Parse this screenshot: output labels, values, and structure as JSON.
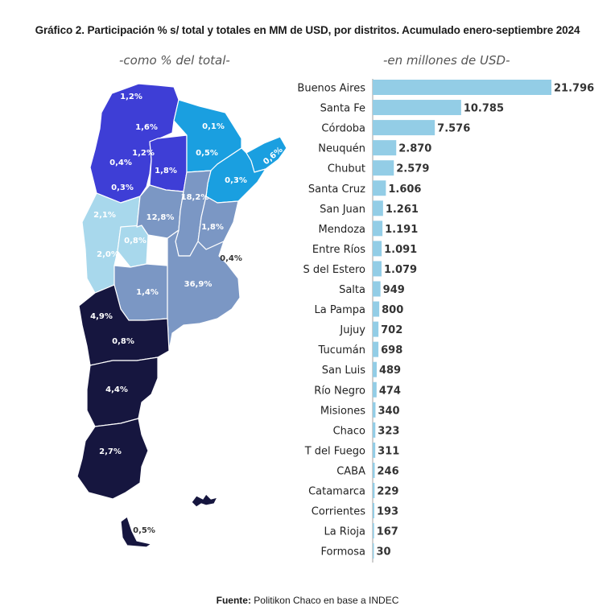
{
  "title": "Gráfico 2. Participación % s/ total y totales en MM de USD, por distritos. Acumulado enero-septiembre 2024",
  "map": {
    "subtitle": "-como % del total-",
    "colors": {
      "northwest": "#3e3ed6",
      "northeast": "#1a9fe0",
      "cuyo": "#a8d8ec",
      "center": "#7b97c4",
      "patagonia": "#16163f",
      "label_light": "#ffffff",
      "label_dark": "#333333"
    },
    "labels": [
      {
        "text": "1,2%",
        "region": "northwest"
      },
      {
        "text": "1,6%",
        "region": "northwest"
      },
      {
        "text": "1,2%",
        "region": "northwest"
      },
      {
        "text": "0,4%",
        "region": "northwest"
      },
      {
        "text": "1,8%",
        "region": "northwest"
      },
      {
        "text": "0,3%",
        "region": "northwest"
      },
      {
        "text": "0,1%",
        "region": "northeast"
      },
      {
        "text": "0,5%",
        "region": "northeast"
      },
      {
        "text": "0,6%",
        "region": "northeast"
      },
      {
        "text": "0,3%",
        "region": "northeast"
      },
      {
        "text": "2,1%",
        "region": "cuyo"
      },
      {
        "text": "0,8%",
        "region": "cuyo"
      },
      {
        "text": "2,0%",
        "region": "cuyo"
      },
      {
        "text": "12,8%",
        "region": "center"
      },
      {
        "text": "18,2%",
        "region": "center"
      },
      {
        "text": "1,8%",
        "region": "center"
      },
      {
        "text": "0,4%",
        "region": "outside"
      },
      {
        "text": "1,4%",
        "region": "center"
      },
      {
        "text": "36,9%",
        "region": "center"
      },
      {
        "text": "4,9%",
        "region": "patagonia"
      },
      {
        "text": "0,8%",
        "region": "patagonia"
      },
      {
        "text": "4,4%",
        "region": "patagonia"
      },
      {
        "text": "2,7%",
        "region": "patagonia"
      },
      {
        "text": "0,5%",
        "region": "outside"
      }
    ]
  },
  "chart_data": {
    "type": "bar",
    "orientation": "horizontal",
    "subtitle": "-en millones de USD-",
    "categories": [
      "Buenos Aires",
      "Santa Fe",
      "Córdoba",
      "Neuquén",
      "Chubut",
      "Santa Cruz",
      "San Juan",
      "Mendoza",
      "Entre Ríos",
      "S del Estero",
      "Salta",
      "La Pampa",
      "Jujuy",
      "Tucumán",
      "San Luis",
      "Río Negro",
      "Misiones",
      "Chaco",
      "T del Fuego",
      "CABA",
      "Catamarca",
      "Corrientes",
      "La Rioja",
      "Formosa"
    ],
    "values": [
      21796,
      10785,
      7576,
      2870,
      2579,
      1606,
      1261,
      1191,
      1091,
      1079,
      949,
      800,
      702,
      698,
      489,
      474,
      340,
      323,
      311,
      246,
      229,
      193,
      167,
      30
    ],
    "value_labels": [
      "21.796",
      "10.785",
      "7.576",
      "2.870",
      "2.579",
      "1.606",
      "1.261",
      "1.191",
      "1.091",
      "1.079",
      "949",
      "800",
      "702",
      "698",
      "489",
      "474",
      "340",
      "323",
      "311",
      "246",
      "229",
      "193",
      "167",
      "30"
    ],
    "bar_color": "#93cde6",
    "axis_color": "#9e9e9e",
    "xlim": [
      0,
      21796
    ],
    "grid": false,
    "legend": "none"
  },
  "footer": {
    "source_label": "Fuente:",
    "source_text": " Politikon Chaco en base a INDEC"
  }
}
